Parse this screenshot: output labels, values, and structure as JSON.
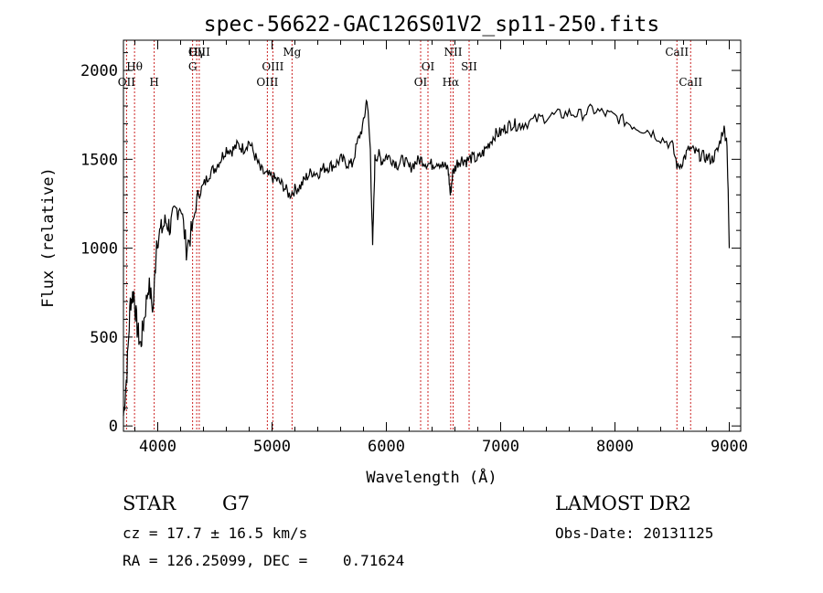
{
  "chart_data": {
    "type": "line",
    "title": "spec-56622-GAC126S01V2_sp11-250.fits",
    "xlabel": "Wavelength (Å)",
    "ylabel": "Flux (relative)",
    "xlim": [
      3700,
      9100
    ],
    "ylim": [
      -30,
      2170
    ],
    "x_ticks": [
      4000,
      5000,
      6000,
      7000,
      8000,
      9000
    ],
    "x_tick_labels": [
      "4000",
      "5000",
      "6000",
      "7000",
      "8000",
      "9000"
    ],
    "y_ticks": [
      0,
      500,
      1000,
      1500,
      2000
    ],
    "y_tick_labels": [
      "0",
      "500",
      "1000",
      "1500",
      "2000"
    ],
    "grid": false,
    "line_color": "#000000",
    "marker_color": "#cc2222",
    "series": [
      {
        "x": [
          3700,
          3730,
          3760,
          3790,
          3820,
          3850,
          3880,
          3920,
          3960,
          3990,
          4030,
          4070,
          4110,
          4150,
          4200,
          4250,
          4300,
          4350,
          4400,
          4450,
          4500,
          4550,
          4600,
          4650,
          4700,
          4750,
          4800,
          4850,
          4900,
          4950,
          5000,
          5050,
          5100,
          5150,
          5200,
          5250,
          5300,
          5350,
          5400,
          5450,
          5500,
          5550,
          5600,
          5650,
          5700,
          5750,
          5800,
          5830,
          5860,
          5880,
          5900,
          5930,
          5960,
          6000,
          6050,
          6100,
          6150,
          6200,
          6250,
          6300,
          6350,
          6400,
          6450,
          6500,
          6540,
          6560,
          6580,
          6620,
          6660,
          6700,
          6750,
          6800,
          6850,
          6900,
          6950,
          7000,
          7050,
          7100,
          7150,
          7200,
          7300,
          7400,
          7500,
          7600,
          7700,
          7800,
          7900,
          8000,
          8100,
          8200,
          8300,
          8400,
          8500,
          8550,
          8600,
          8650,
          8700,
          8750,
          8800,
          8850,
          8900,
          8950,
          8980,
          9000
        ],
        "y": [
          60,
          300,
          700,
          750,
          550,
          450,
          600,
          800,
          650,
          1050,
          1100,
          1150,
          1120,
          1200,
          1250,
          1000,
          1100,
          1300,
          1350,
          1420,
          1450,
          1500,
          1560,
          1550,
          1580,
          1560,
          1600,
          1520,
          1440,
          1410,
          1400,
          1380,
          1350,
          1300,
          1330,
          1350,
          1400,
          1430,
          1420,
          1450,
          1460,
          1470,
          1500,
          1480,
          1470,
          1600,
          1700,
          1850,
          1550,
          1000,
          1500,
          1530,
          1490,
          1520,
          1500,
          1470,
          1500,
          1450,
          1480,
          1500,
          1480,
          1470,
          1490,
          1460,
          1450,
          1300,
          1420,
          1480,
          1500,
          1490,
          1510,
          1500,
          1540,
          1590,
          1640,
          1650,
          1680,
          1700,
          1690,
          1700,
          1720,
          1740,
          1750,
          1760,
          1750,
          1780,
          1760,
          1740,
          1710,
          1680,
          1660,
          1620,
          1580,
          1450,
          1500,
          1560,
          1540,
          1520,
          1510,
          1500,
          1550,
          1680,
          1600,
          1000
        ]
      }
    ],
    "line_markers": [
      {
        "label": "Hγ",
        "x": 4341,
        "row": 1
      },
      {
        "label": "Hθ",
        "x": 3797,
        "row": 2
      },
      {
        "label": "OII",
        "x": 3727,
        "row": 3
      },
      {
        "label": "H",
        "x": 3969,
        "row": 3
      },
      {
        "label": "OIII",
        "x": 4363,
        "row": 1
      },
      {
        "label": "G",
        "x": 4305,
        "row": 2
      },
      {
        "label": "Mg",
        "x": 5175,
        "row": 1
      },
      {
        "label": "OIII",
        "x": 5007,
        "row": 2
      },
      {
        "label": "OIII",
        "x": 4959,
        "row": 3
      },
      {
        "label": "NII",
        "x": 6584,
        "row": 1
      },
      {
        "label": "OI",
        "x": 6364,
        "row": 2
      },
      {
        "label": "SII",
        "x": 6724,
        "row": 2
      },
      {
        "label": "OI",
        "x": 6300,
        "row": 3
      },
      {
        "label": "Hα",
        "x": 6563,
        "row": 3
      },
      {
        "label": "CaII",
        "x": 8542,
        "row": 1
      },
      {
        "label": "CaII",
        "x": 8662,
        "row": 3
      }
    ]
  },
  "info": {
    "class_label": "STAR",
    "subclass": "G7",
    "survey": "LAMOST DR2",
    "cz": "cz = 17.7 ± 16.5 km/s",
    "obs_date": "Obs-Date: 20131125",
    "coords": "RA = 126.25099, DEC =    0.71624"
  }
}
